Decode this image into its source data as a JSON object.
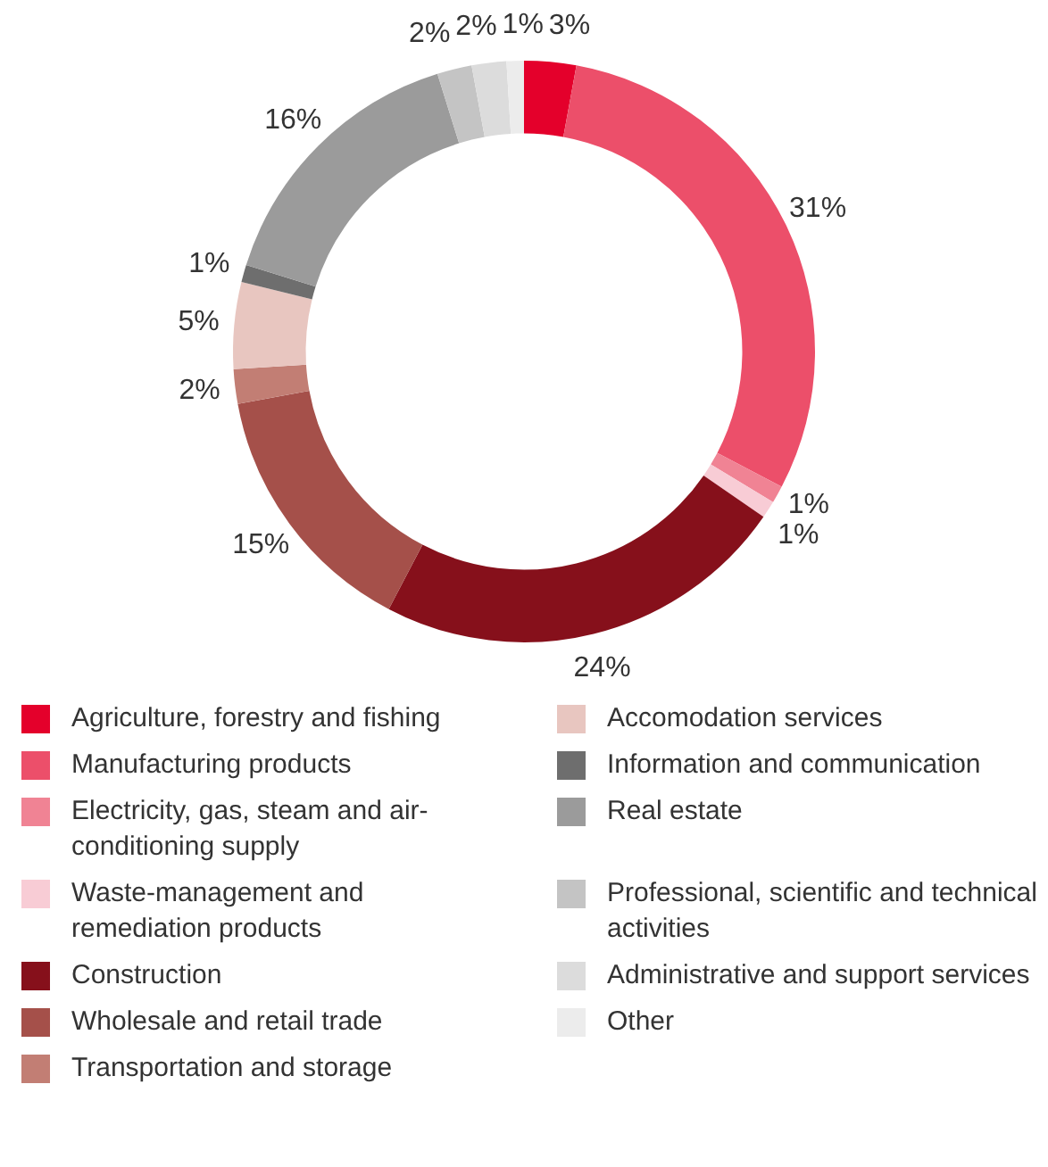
{
  "chart_data": {
    "type": "donut",
    "categories": [
      "Agriculture, forestry and fishing",
      "Manufacturing products",
      "Electricity, gas, steam and air-conditioning supply",
      "Waste-management and remediation products",
      "Construction",
      "Wholesale and retail trade",
      "Transportation and storage",
      "Accomodation services",
      "Information and communication",
      "Real estate",
      "Professional, scientific and technical activities",
      "Administrative and support services",
      "Other"
    ],
    "values": [
      3,
      31,
      1,
      1,
      24,
      15,
      2,
      5,
      1,
      16,
      2,
      2,
      1
    ],
    "value_labels": [
      "3%",
      "31%",
      "1%",
      "1%",
      "24%",
      "15%",
      "2%",
      "5%",
      "1%",
      "16%",
      "2%",
      "2%",
      "1%"
    ],
    "colors": [
      "#e4002b",
      "#ec4f6a",
      "#f08394",
      "#f8ccd5",
      "#86101b",
      "#a5504a",
      "#c27e74",
      "#e8c6c0",
      "#6e6e6e",
      "#9b9b9b",
      "#c4c4c4",
      "#dcdcdc",
      "#ececec"
    ],
    "legend": "bottom"
  }
}
